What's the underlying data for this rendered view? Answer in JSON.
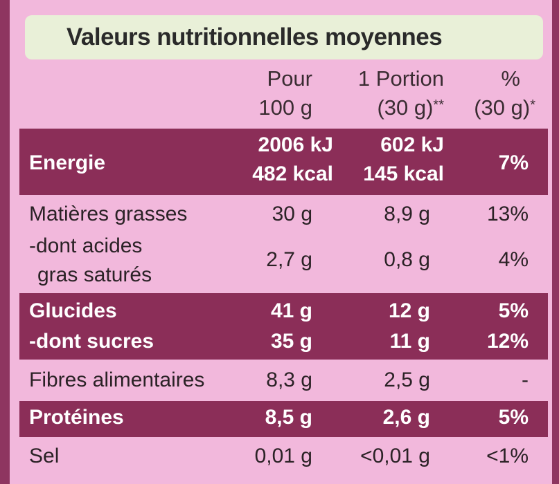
{
  "title": "Valeurs nutritionnelles moyennes",
  "header": {
    "col_100g": [
      "Pour",
      "100 g"
    ],
    "col_portion": [
      "1 Portion",
      "(30 g)"
    ],
    "col_portion_sup": "**",
    "col_pct": [
      "%",
      "(30 g)"
    ],
    "col_pct_sup": "*"
  },
  "rows": {
    "energie": {
      "label": "Energie",
      "v100": [
        "2006 kJ",
        "482 kcal"
      ],
      "portion": [
        "602 kJ",
        "145 kcal"
      ],
      "pct": "7%"
    },
    "matieres_grasses": {
      "label": "Matières grasses",
      "v100": "30 g",
      "portion": "8,9 g",
      "pct": "13%"
    },
    "acides_gras": {
      "label": [
        "-dont acides",
        " gras saturés"
      ],
      "v100": "2,7 g",
      "portion": "0,8 g",
      "pct": "4%"
    },
    "glucides": {
      "label": "Glucides",
      "v100": "41 g",
      "portion": "12 g",
      "pct": "5%"
    },
    "sucres": {
      "label": "-dont sucres",
      "v100": "35 g",
      "portion": "11 g",
      "pct": "12%"
    },
    "fibres": {
      "label": "Fibres alimentaires",
      "v100": "8,3 g",
      "portion": "2,5 g",
      "pct": "-"
    },
    "proteines": {
      "label": "Protéines",
      "v100": "8,5 g",
      "portion": "2,6 g",
      "pct": "5%"
    },
    "sel": {
      "label": "Sel",
      "v100": "0,01 g",
      "portion": "<0,01 g",
      "pct": "<1%"
    }
  }
}
